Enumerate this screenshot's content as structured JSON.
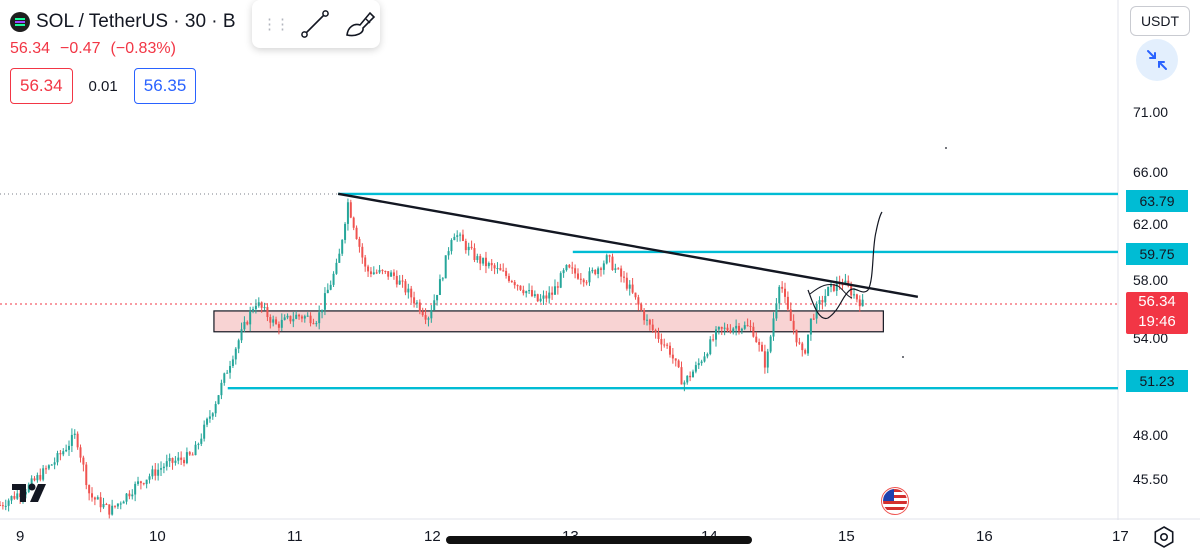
{
  "header": {
    "title": "SOL / TetherUS · 30 · B",
    "last_price": "56.34",
    "change": "−0.47",
    "change_pct": "(−0.83%)",
    "sell_price": "56.34",
    "spread": "0.01",
    "buy_price": "56.35"
  },
  "toolbar": {
    "grip_icon": "drag-handle-icon",
    "tools": [
      "trend-line-icon",
      "brush-icon"
    ]
  },
  "currency": "USDT",
  "price_axis": {
    "ticks": [
      "71.00",
      "66.00",
      "62.00",
      "58.00",
      "54.00",
      "48.00",
      "45.50"
    ],
    "labels": {
      "high_line": "63.79",
      "mid_line": "59.75",
      "low_line": "51.23"
    },
    "last_price": "56.34",
    "countdown": "19:46"
  },
  "time_axis": {
    "ticks": [
      "9",
      "10",
      "11",
      "12",
      "13",
      "14",
      "15",
      "16",
      "17"
    ]
  },
  "colors": {
    "up": "#26a69a",
    "down": "#ef5350",
    "horizontal_line": "#00bcd4",
    "zone_fill": "#f8d3d3",
    "last_price": "#f23645"
  },
  "chart_data": {
    "type": "candlestick",
    "symbol": "SOL / TetherUS",
    "interval": "30",
    "y_axis_scale": "log",
    "ylim": [
      44.2,
      79.4
    ],
    "xlim": [
      8.9,
      17.0
    ],
    "support_resistance_lines": [
      {
        "price": 63.79,
        "x_start": 11.35,
        "x_end": 17.0
      },
      {
        "price": 59.75,
        "x_start": 13.05,
        "x_end": 17.0
      },
      {
        "price": 51.23,
        "x_start": 10.55,
        "x_end": 17.0
      }
    ],
    "zone": {
      "price_low": 54.6,
      "price_high": 55.9,
      "x_start": 10.45,
      "x_end": 15.3
    },
    "trendline": [
      {
        "x": 11.35,
        "price": 63.8
      },
      {
        "x": 15.55,
        "price": 56.8
      }
    ],
    "current_price": 56.34,
    "price_path": [
      {
        "x": 8.9,
        "price": 44.9
      },
      {
        "x": 9.1,
        "price": 45.8
      },
      {
        "x": 9.3,
        "price": 47.2
      },
      {
        "x": 9.45,
        "price": 48.6
      },
      {
        "x": 9.55,
        "price": 45.4
      },
      {
        "x": 9.7,
        "price": 44.6
      },
      {
        "x": 9.9,
        "price": 46.0
      },
      {
        "x": 10.1,
        "price": 47.0
      },
      {
        "x": 10.3,
        "price": 47.5
      },
      {
        "x": 10.45,
        "price": 50.2
      },
      {
        "x": 10.6,
        "price": 53.5
      },
      {
        "x": 10.75,
        "price": 56.5
      },
      {
        "x": 10.9,
        "price": 55.0
      },
      {
        "x": 11.05,
        "price": 55.6
      },
      {
        "x": 11.2,
        "price": 55.4
      },
      {
        "x": 11.35,
        "price": 59.0
      },
      {
        "x": 11.42,
        "price": 63.2
      },
      {
        "x": 11.55,
        "price": 58.5
      },
      {
        "x": 11.75,
        "price": 58.2
      },
      {
        "x": 11.9,
        "price": 56.6
      },
      {
        "x": 12.0,
        "price": 55.5
      },
      {
        "x": 12.1,
        "price": 58.0
      },
      {
        "x": 12.18,
        "price": 61.2
      },
      {
        "x": 12.35,
        "price": 59.3
      },
      {
        "x": 12.6,
        "price": 58.0
      },
      {
        "x": 12.8,
        "price": 56.5
      },
      {
        "x": 12.9,
        "price": 57.0
      },
      {
        "x": 13.0,
        "price": 58.6
      },
      {
        "x": 13.15,
        "price": 58.0
      },
      {
        "x": 13.3,
        "price": 59.3
      },
      {
        "x": 13.45,
        "price": 57.5
      },
      {
        "x": 13.6,
        "price": 55.0
      },
      {
        "x": 13.75,
        "price": 53.5
      },
      {
        "x": 13.85,
        "price": 51.5
      },
      {
        "x": 13.95,
        "price": 52.5
      },
      {
        "x": 14.1,
        "price": 54.6
      },
      {
        "x": 14.25,
        "price": 55.0
      },
      {
        "x": 14.35,
        "price": 54.8
      },
      {
        "x": 14.45,
        "price": 52.5
      },
      {
        "x": 14.55,
        "price": 58.0
      },
      {
        "x": 14.6,
        "price": 56.0
      },
      {
        "x": 14.72,
        "price": 53.0
      },
      {
        "x": 14.78,
        "price": 55.5
      },
      {
        "x": 14.9,
        "price": 57.2
      },
      {
        "x": 15.0,
        "price": 57.8
      },
      {
        "x": 15.1,
        "price": 56.8
      },
      {
        "x": 15.15,
        "price": 56.34
      }
    ]
  }
}
